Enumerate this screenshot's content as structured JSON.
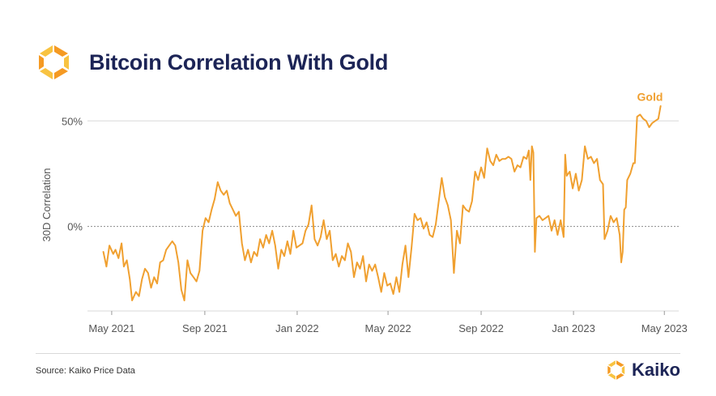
{
  "header": {
    "title": "Bitcoin Correlation With Gold",
    "logo_icon": "kaiko-logo-icon"
  },
  "footer": {
    "source": "Source: Kaiko Price Data",
    "brand_name": "Kaiko",
    "brand_icon": "kaiko-logo-icon"
  },
  "colors": {
    "series": "#f0a030",
    "title": "#1c2456",
    "axis_text": "#555555",
    "grid": "#d9d9d9",
    "zero_line": "#8c8c8c",
    "logo_orange": "#f59a23",
    "logo_yellow": "#f8c341"
  },
  "chart_data": {
    "type": "line",
    "title": "Bitcoin Correlation With Gold",
    "xlabel": "",
    "ylabel": "30D Correlation",
    "x_ticks": [
      "May 2021",
      "Sep 2021",
      "Jan 2022",
      "May 2022",
      "Sep 2022",
      "Jan 2023",
      "May 2023"
    ],
    "x_tick_dates": [
      "2021-05-01",
      "2021-09-01",
      "2022-01-01",
      "2022-05-01",
      "2022-09-01",
      "2023-01-01",
      "2023-05-01"
    ],
    "xlim": [
      "2021-03-30",
      "2023-05-20"
    ],
    "y_ticks": [
      0,
      50
    ],
    "y_tick_labels": [
      "0%",
      "50%"
    ],
    "ylim": [
      -40,
      62
    ],
    "grid": "horizontal at 50%, dashed zero line",
    "series": [
      {
        "name": "Gold",
        "color": "#f0a030",
        "points": [
          [
            "2021-04-20",
            -12
          ],
          [
            "2021-04-24",
            -19
          ],
          [
            "2021-04-28",
            -9
          ],
          [
            "2021-05-03",
            -13
          ],
          [
            "2021-05-06",
            -11
          ],
          [
            "2021-05-10",
            -15
          ],
          [
            "2021-05-14",
            -8
          ],
          [
            "2021-05-17",
            -19
          ],
          [
            "2021-05-21",
            -16
          ],
          [
            "2021-05-25",
            -25
          ],
          [
            "2021-05-28",
            -35
          ],
          [
            "2021-06-02",
            -31
          ],
          [
            "2021-06-06",
            -33
          ],
          [
            "2021-06-10",
            -25
          ],
          [
            "2021-06-14",
            -20
          ],
          [
            "2021-06-18",
            -22
          ],
          [
            "2021-06-22",
            -29
          ],
          [
            "2021-06-26",
            -24
          ],
          [
            "2021-06-30",
            -27
          ],
          [
            "2021-07-04",
            -17
          ],
          [
            "2021-07-08",
            -16
          ],
          [
            "2021-07-12",
            -11
          ],
          [
            "2021-07-16",
            -9
          ],
          [
            "2021-07-20",
            -7
          ],
          [
            "2021-07-24",
            -9
          ],
          [
            "2021-07-28",
            -17
          ],
          [
            "2021-08-01",
            -30
          ],
          [
            "2021-08-05",
            -35
          ],
          [
            "2021-08-09",
            -16
          ],
          [
            "2021-08-13",
            -22
          ],
          [
            "2021-08-17",
            -24
          ],
          [
            "2021-08-21",
            -26
          ],
          [
            "2021-08-25",
            -21
          ],
          [
            "2021-08-29",
            -2
          ],
          [
            "2021-09-02",
            4
          ],
          [
            "2021-09-06",
            2
          ],
          [
            "2021-09-10",
            8
          ],
          [
            "2021-09-14",
            13
          ],
          [
            "2021-09-18",
            21
          ],
          [
            "2021-09-22",
            17
          ],
          [
            "2021-09-26",
            15
          ],
          [
            "2021-09-30",
            17
          ],
          [
            "2021-10-04",
            11
          ],
          [
            "2021-10-08",
            8
          ],
          [
            "2021-10-12",
            5
          ],
          [
            "2021-10-16",
            7
          ],
          [
            "2021-10-20",
            -8
          ],
          [
            "2021-10-24",
            -16
          ],
          [
            "2021-10-28",
            -11
          ],
          [
            "2021-11-01",
            -17
          ],
          [
            "2021-11-05",
            -12
          ],
          [
            "2021-11-09",
            -14
          ],
          [
            "2021-11-13",
            -6
          ],
          [
            "2021-11-17",
            -10
          ],
          [
            "2021-11-21",
            -4
          ],
          [
            "2021-11-25",
            -8
          ],
          [
            "2021-11-29",
            -2
          ],
          [
            "2021-12-03",
            -9
          ],
          [
            "2021-12-07",
            -20
          ],
          [
            "2021-12-11",
            -11
          ],
          [
            "2021-12-15",
            -14
          ],
          [
            "2021-12-19",
            -7
          ],
          [
            "2021-12-23",
            -13
          ],
          [
            "2021-12-27",
            -2
          ],
          [
            "2021-12-31",
            -10
          ],
          [
            "2022-01-04",
            -9
          ],
          [
            "2022-01-08",
            -8
          ],
          [
            "2022-01-12",
            -2
          ],
          [
            "2022-01-16",
            1
          ],
          [
            "2022-01-20",
            10
          ],
          [
            "2022-01-24",
            -6
          ],
          [
            "2022-01-28",
            -9
          ],
          [
            "2022-02-01",
            -5
          ],
          [
            "2022-02-05",
            3
          ],
          [
            "2022-02-09",
            -6
          ],
          [
            "2022-02-13",
            -2
          ],
          [
            "2022-02-17",
            -16
          ],
          [
            "2022-02-21",
            -13
          ],
          [
            "2022-02-25",
            -19
          ],
          [
            "2022-03-01",
            -14
          ],
          [
            "2022-03-05",
            -16
          ],
          [
            "2022-03-09",
            -8
          ],
          [
            "2022-03-13",
            -12
          ],
          [
            "2022-03-17",
            -24
          ],
          [
            "2022-03-21",
            -17
          ],
          [
            "2022-03-25",
            -20
          ],
          [
            "2022-03-29",
            -14
          ],
          [
            "2022-04-02",
            -26
          ],
          [
            "2022-04-06",
            -18
          ],
          [
            "2022-04-10",
            -21
          ],
          [
            "2022-04-14",
            -18
          ],
          [
            "2022-04-18",
            -24
          ],
          [
            "2022-04-22",
            -31
          ],
          [
            "2022-04-26",
            -22
          ],
          [
            "2022-04-30",
            -28
          ],
          [
            "2022-05-04",
            -27
          ],
          [
            "2022-05-08",
            -32
          ],
          [
            "2022-05-12",
            -24
          ],
          [
            "2022-05-16",
            -31
          ],
          [
            "2022-05-20",
            -18
          ],
          [
            "2022-05-24",
            -9
          ],
          [
            "2022-05-28",
            -24
          ],
          [
            "2022-06-01",
            -10
          ],
          [
            "2022-06-05",
            6
          ],
          [
            "2022-06-09",
            3
          ],
          [
            "2022-06-13",
            4
          ],
          [
            "2022-06-17",
            -1
          ],
          [
            "2022-06-21",
            2
          ],
          [
            "2022-06-25",
            -4
          ],
          [
            "2022-06-29",
            -5
          ],
          [
            "2022-07-03",
            1
          ],
          [
            "2022-07-07",
            12
          ],
          [
            "2022-07-11",
            23
          ],
          [
            "2022-07-15",
            14
          ],
          [
            "2022-07-19",
            10
          ],
          [
            "2022-07-23",
            3
          ],
          [
            "2022-07-27",
            -22
          ],
          [
            "2022-07-31",
            -2
          ],
          [
            "2022-08-04",
            -8
          ],
          [
            "2022-08-08",
            10
          ],
          [
            "2022-08-12",
            8
          ],
          [
            "2022-08-16",
            7
          ],
          [
            "2022-08-20",
            12
          ],
          [
            "2022-08-24",
            26
          ],
          [
            "2022-08-28",
            22
          ],
          [
            "2022-09-01",
            28
          ],
          [
            "2022-09-05",
            23
          ],
          [
            "2022-09-09",
            37
          ],
          [
            "2022-09-13",
            31
          ],
          [
            "2022-09-17",
            29
          ],
          [
            "2022-09-21",
            34
          ],
          [
            "2022-09-25",
            31
          ],
          [
            "2022-09-29",
            32
          ],
          [
            "2022-10-03",
            32
          ],
          [
            "2022-10-07",
            33
          ],
          [
            "2022-10-11",
            32
          ],
          [
            "2022-10-15",
            26
          ],
          [
            "2022-10-19",
            29
          ],
          [
            "2022-10-23",
            28
          ],
          [
            "2022-10-27",
            33
          ],
          [
            "2022-10-31",
            32
          ],
          [
            "2022-11-03",
            36
          ],
          [
            "2022-11-05",
            22
          ],
          [
            "2022-11-07",
            38
          ],
          [
            "2022-11-09",
            35
          ],
          [
            "2022-11-11",
            -12
          ],
          [
            "2022-11-13",
            4
          ],
          [
            "2022-11-17",
            5
          ],
          [
            "2022-11-21",
            3
          ],
          [
            "2022-11-25",
            4
          ],
          [
            "2022-11-29",
            5
          ],
          [
            "2022-12-03",
            -2
          ],
          [
            "2022-12-07",
            3
          ],
          [
            "2022-12-11",
            -4
          ],
          [
            "2022-12-15",
            3
          ],
          [
            "2022-12-19",
            -5
          ],
          [
            "2022-12-21",
            34
          ],
          [
            "2022-12-23",
            24
          ],
          [
            "2022-12-27",
            26
          ],
          [
            "2022-12-31",
            18
          ],
          [
            "2023-01-04",
            25
          ],
          [
            "2023-01-08",
            17
          ],
          [
            "2023-01-12",
            22
          ],
          [
            "2023-01-16",
            38
          ],
          [
            "2023-01-20",
            32
          ],
          [
            "2023-01-24",
            33
          ],
          [
            "2023-01-28",
            30
          ],
          [
            "2023-02-01",
            32
          ],
          [
            "2023-02-05",
            22
          ],
          [
            "2023-02-09",
            20
          ],
          [
            "2023-02-11",
            -6
          ],
          [
            "2023-02-15",
            -2
          ],
          [
            "2023-02-19",
            5
          ],
          [
            "2023-02-23",
            2
          ],
          [
            "2023-02-27",
            4
          ],
          [
            "2023-03-03",
            -4
          ],
          [
            "2023-03-05",
            -17
          ],
          [
            "2023-03-07",
            -12
          ],
          [
            "2023-03-09",
            8
          ],
          [
            "2023-03-11",
            9
          ],
          [
            "2023-03-13",
            22
          ],
          [
            "2023-03-17",
            25
          ],
          [
            "2023-03-21",
            30
          ],
          [
            "2023-03-23",
            30
          ],
          [
            "2023-03-26",
            52
          ],
          [
            "2023-03-30",
            53
          ],
          [
            "2023-04-03",
            51
          ],
          [
            "2023-04-07",
            50
          ],
          [
            "2023-04-11",
            47
          ],
          [
            "2023-04-15",
            49
          ],
          [
            "2023-04-19",
            50
          ],
          [
            "2023-04-23",
            51
          ],
          [
            "2023-04-26",
            57
          ]
        ]
      }
    ],
    "annotations": [
      {
        "text": "Gold",
        "date": "2023-04-12",
        "y": 58
      }
    ]
  }
}
